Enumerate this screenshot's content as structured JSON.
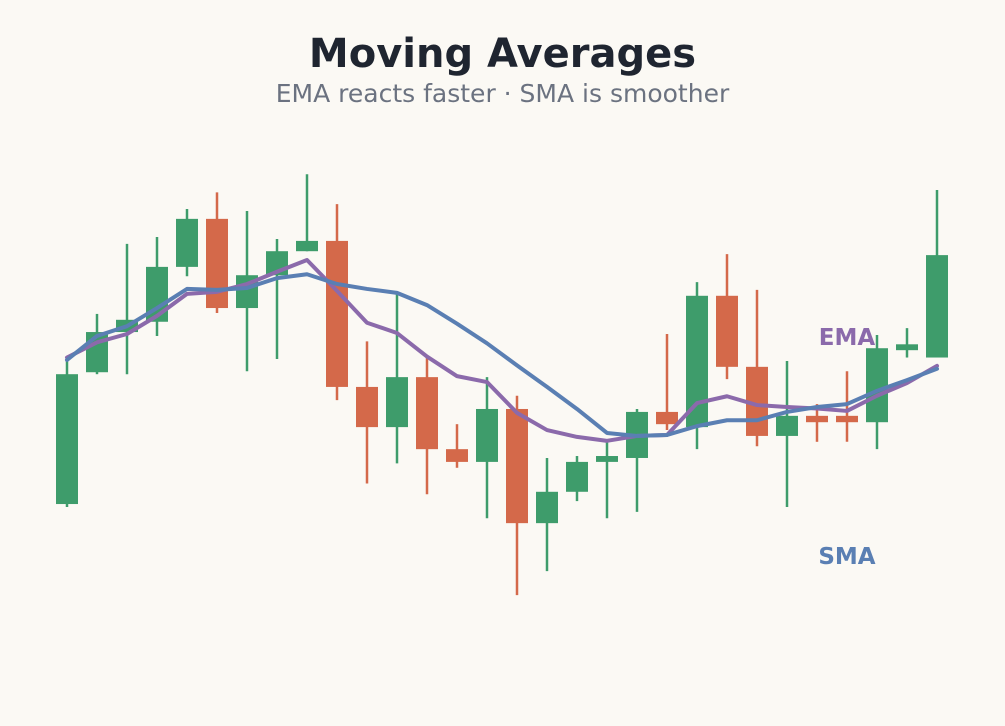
{
  "title": "Moving Averages",
  "subtitle": "EMA reacts faster · SMA is smoother",
  "chart_data": {
    "type": "candlestick",
    "ylim": [
      0,
      100
    ],
    "colors": {
      "up": "#3e9c6b",
      "down": "#d4694a",
      "ema": "#8b6aab",
      "sma": "#5a7fb3",
      "background": "#fbf9f4"
    },
    "candles": [
      {
        "open": 30.4,
        "close": 56.9,
        "high": 60.3,
        "low": 29.8
      },
      {
        "open": 57.3,
        "close": 65.5,
        "high": 69.2,
        "low": 56.9
      },
      {
        "open": 65.5,
        "close": 68.0,
        "high": 83.5,
        "low": 56.9
      },
      {
        "open": 67.6,
        "close": 78.8,
        "high": 84.9,
        "low": 64.7
      },
      {
        "open": 78.8,
        "close": 88.6,
        "high": 90.6,
        "low": 76.9
      },
      {
        "open": 88.6,
        "close": 70.4,
        "high": 94.0,
        "low": 69.4
      },
      {
        "open": 70.4,
        "close": 77.1,
        "high": 90.2,
        "low": 57.5
      },
      {
        "open": 77.1,
        "close": 82.0,
        "high": 84.5,
        "low": 60.0
      },
      {
        "open": 82.0,
        "close": 84.1,
        "high": 97.7,
        "low": 82.0
      },
      {
        "open": 84.1,
        "close": 54.3,
        "high": 91.6,
        "low": 51.6
      },
      {
        "open": 54.3,
        "close": 46.1,
        "high": 63.6,
        "low": 34.6
      },
      {
        "open": 46.1,
        "close": 56.3,
        "high": 73.3,
        "low": 38.7
      },
      {
        "open": 56.3,
        "close": 41.6,
        "high": 60.5,
        "low": 32.4
      },
      {
        "open": 41.6,
        "close": 39.0,
        "high": 46.7,
        "low": 37.8
      },
      {
        "open": 39.0,
        "close": 49.8,
        "high": 56.3,
        "low": 27.5
      },
      {
        "open": 49.8,
        "close": 26.5,
        "high": 52.5,
        "low": 11.8
      },
      {
        "open": 26.5,
        "close": 32.9,
        "high": 39.8,
        "low": 16.7
      },
      {
        "open": 32.9,
        "close": 39.0,
        "high": 40.2,
        "low": 31.0
      },
      {
        "open": 39.0,
        "close": 40.2,
        "high": 43.4,
        "low": 27.5
      },
      {
        "open": 39.8,
        "close": 49.2,
        "high": 49.8,
        "low": 28.8
      },
      {
        "open": 49.2,
        "close": 46.7,
        "high": 65.1,
        "low": 45.5
      },
      {
        "open": 46.1,
        "close": 72.9,
        "high": 75.7,
        "low": 41.6
      },
      {
        "open": 72.9,
        "close": 58.4,
        "high": 81.4,
        "low": 55.9
      },
      {
        "open": 58.4,
        "close": 44.3,
        "high": 74.1,
        "low": 42.2
      },
      {
        "open": 44.3,
        "close": 48.4,
        "high": 59.6,
        "low": 29.8
      },
      {
        "open": 48.4,
        "close": 47.1,
        "high": 50.8,
        "low": 43.1
      },
      {
        "open": 48.4,
        "close": 47.1,
        "high": 57.5,
        "low": 43.1
      },
      {
        "open": 47.1,
        "close": 62.2,
        "high": 64.9,
        "low": 41.6
      },
      {
        "open": 61.8,
        "close": 63.0,
        "high": 66.3,
        "low": 60.3
      },
      {
        "open": 60.3,
        "close": 81.2,
        "high": 94.5,
        "low": 60.3
      }
    ],
    "ema": {
      "label": "EMA",
      "values": [
        60.3,
        63.4,
        65.1,
        68.8,
        73.3,
        73.7,
        75.3,
        77.8,
        80.2,
        73.9,
        67.4,
        65.3,
        60.5,
        56.5,
        55.3,
        49.0,
        45.5,
        44.1,
        43.3,
        44.3,
        44.5,
        51.0,
        52.4,
        50.6,
        50.2,
        49.9,
        49.4,
        52.5,
        55.1,
        58.6
      ]
    },
    "sma": {
      "label": "SMA",
      "values": [
        59.8,
        64.7,
        66.7,
        70.4,
        74.3,
        74.1,
        74.5,
        76.5,
        77.3,
        75.3,
        74.3,
        73.5,
        71.0,
        67.2,
        63.2,
        58.7,
        54.3,
        49.8,
        44.9,
        44.3,
        44.5,
        46.3,
        47.5,
        47.5,
        49.2,
        50.2,
        50.8,
        53.5,
        55.7,
        58.0
      ]
    }
  }
}
